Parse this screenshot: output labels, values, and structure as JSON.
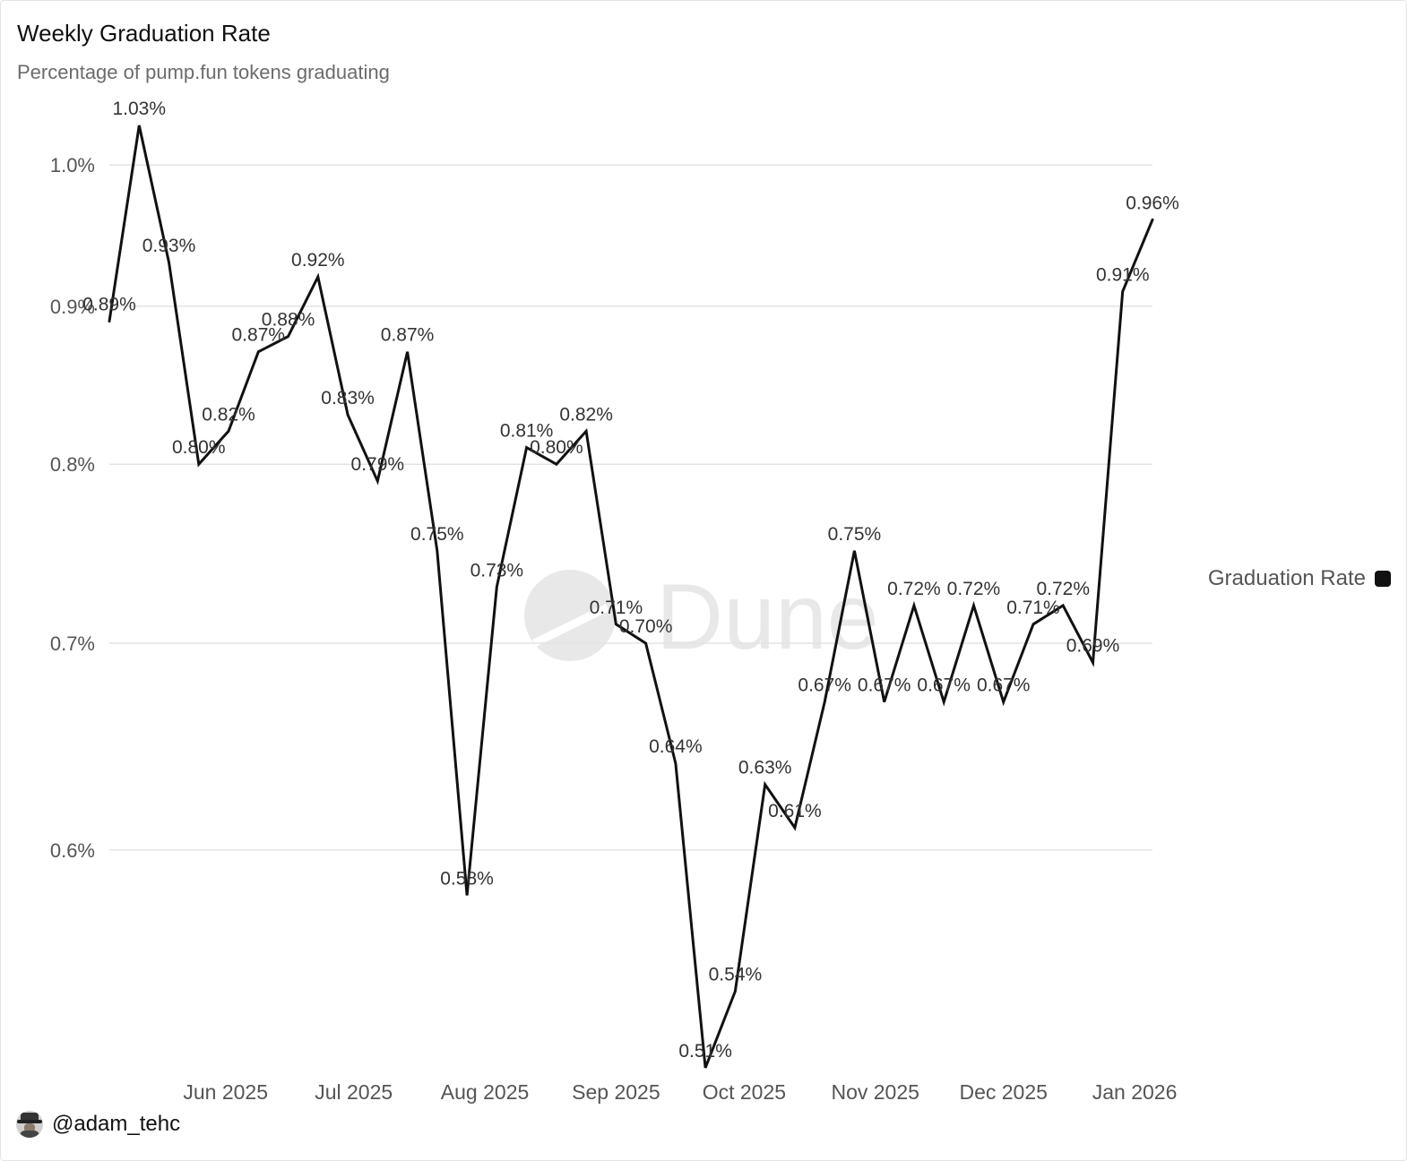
{
  "chart_data": {
    "type": "line",
    "title": "Weekly Graduation Rate",
    "subtitle": "Percentage of pump.fun tokens graduating",
    "watermark": "Dune",
    "series": [
      {
        "name": "Graduation Rate",
        "color": "#111111",
        "values": [
          0.89,
          1.03,
          0.93,
          0.8,
          0.82,
          0.87,
          0.88,
          0.92,
          0.83,
          0.79,
          0.87,
          0.75,
          0.58,
          0.73,
          0.81,
          0.8,
          0.82,
          0.71,
          0.7,
          0.64,
          0.51,
          0.54,
          0.63,
          0.61,
          0.67,
          0.75,
          0.67,
          0.72,
          0.67,
          0.72,
          0.67,
          0.71,
          0.72,
          0.69,
          0.91,
          0.96
        ],
        "labels": [
          "0.89%",
          "1.03%",
          "0.93%",
          "0.80%",
          "0.82%",
          "0.87%",
          "0.88%",
          "0.92%",
          "0.83%",
          "0.79%",
          "0.87%",
          "0.75%",
          "0.58%",
          "0.73%",
          "0.81%",
          "0.80%",
          "0.82%",
          "0.71%",
          "0.70%",
          "0.64%",
          "0.51%",
          "0.54%",
          "0.63%",
          "0.61%",
          "0.67%",
          "0.75%",
          "0.67%",
          "0.72%",
          "0.67%",
          "0.72%",
          "0.67%",
          "0.71%",
          "0.72%",
          "0.69%",
          "0.91%",
          "0.96%"
        ]
      }
    ],
    "x_ticks": [
      {
        "label": "Jun 2025",
        "at_index": 3.9
      },
      {
        "label": "Jul 2025",
        "at_index": 8.2
      },
      {
        "label": "Aug 2025",
        "at_index": 12.6
      },
      {
        "label": "Sep 2025",
        "at_index": 17.0
      },
      {
        "label": "Oct 2025",
        "at_index": 21.3
      },
      {
        "label": "Nov 2025",
        "at_index": 25.7
      },
      {
        "label": "Dec 2025",
        "at_index": 30.0
      },
      {
        "label": "Jan 2026",
        "at_index": 34.4
      }
    ],
    "y_ticks": [
      {
        "value": 0.6,
        "label": "0.6%"
      },
      {
        "value": 0.7,
        "label": "0.7%"
      },
      {
        "value": 0.8,
        "label": "0.8%"
      },
      {
        "value": 0.9,
        "label": "0.9%"
      },
      {
        "value": 1.0,
        "label": "1.0%"
      }
    ],
    "y_scale": "log",
    "ylim": [
      0.51,
      1.03
    ],
    "grid": true,
    "legend": "right"
  },
  "footer": {
    "handle": "@adam_tehc"
  }
}
